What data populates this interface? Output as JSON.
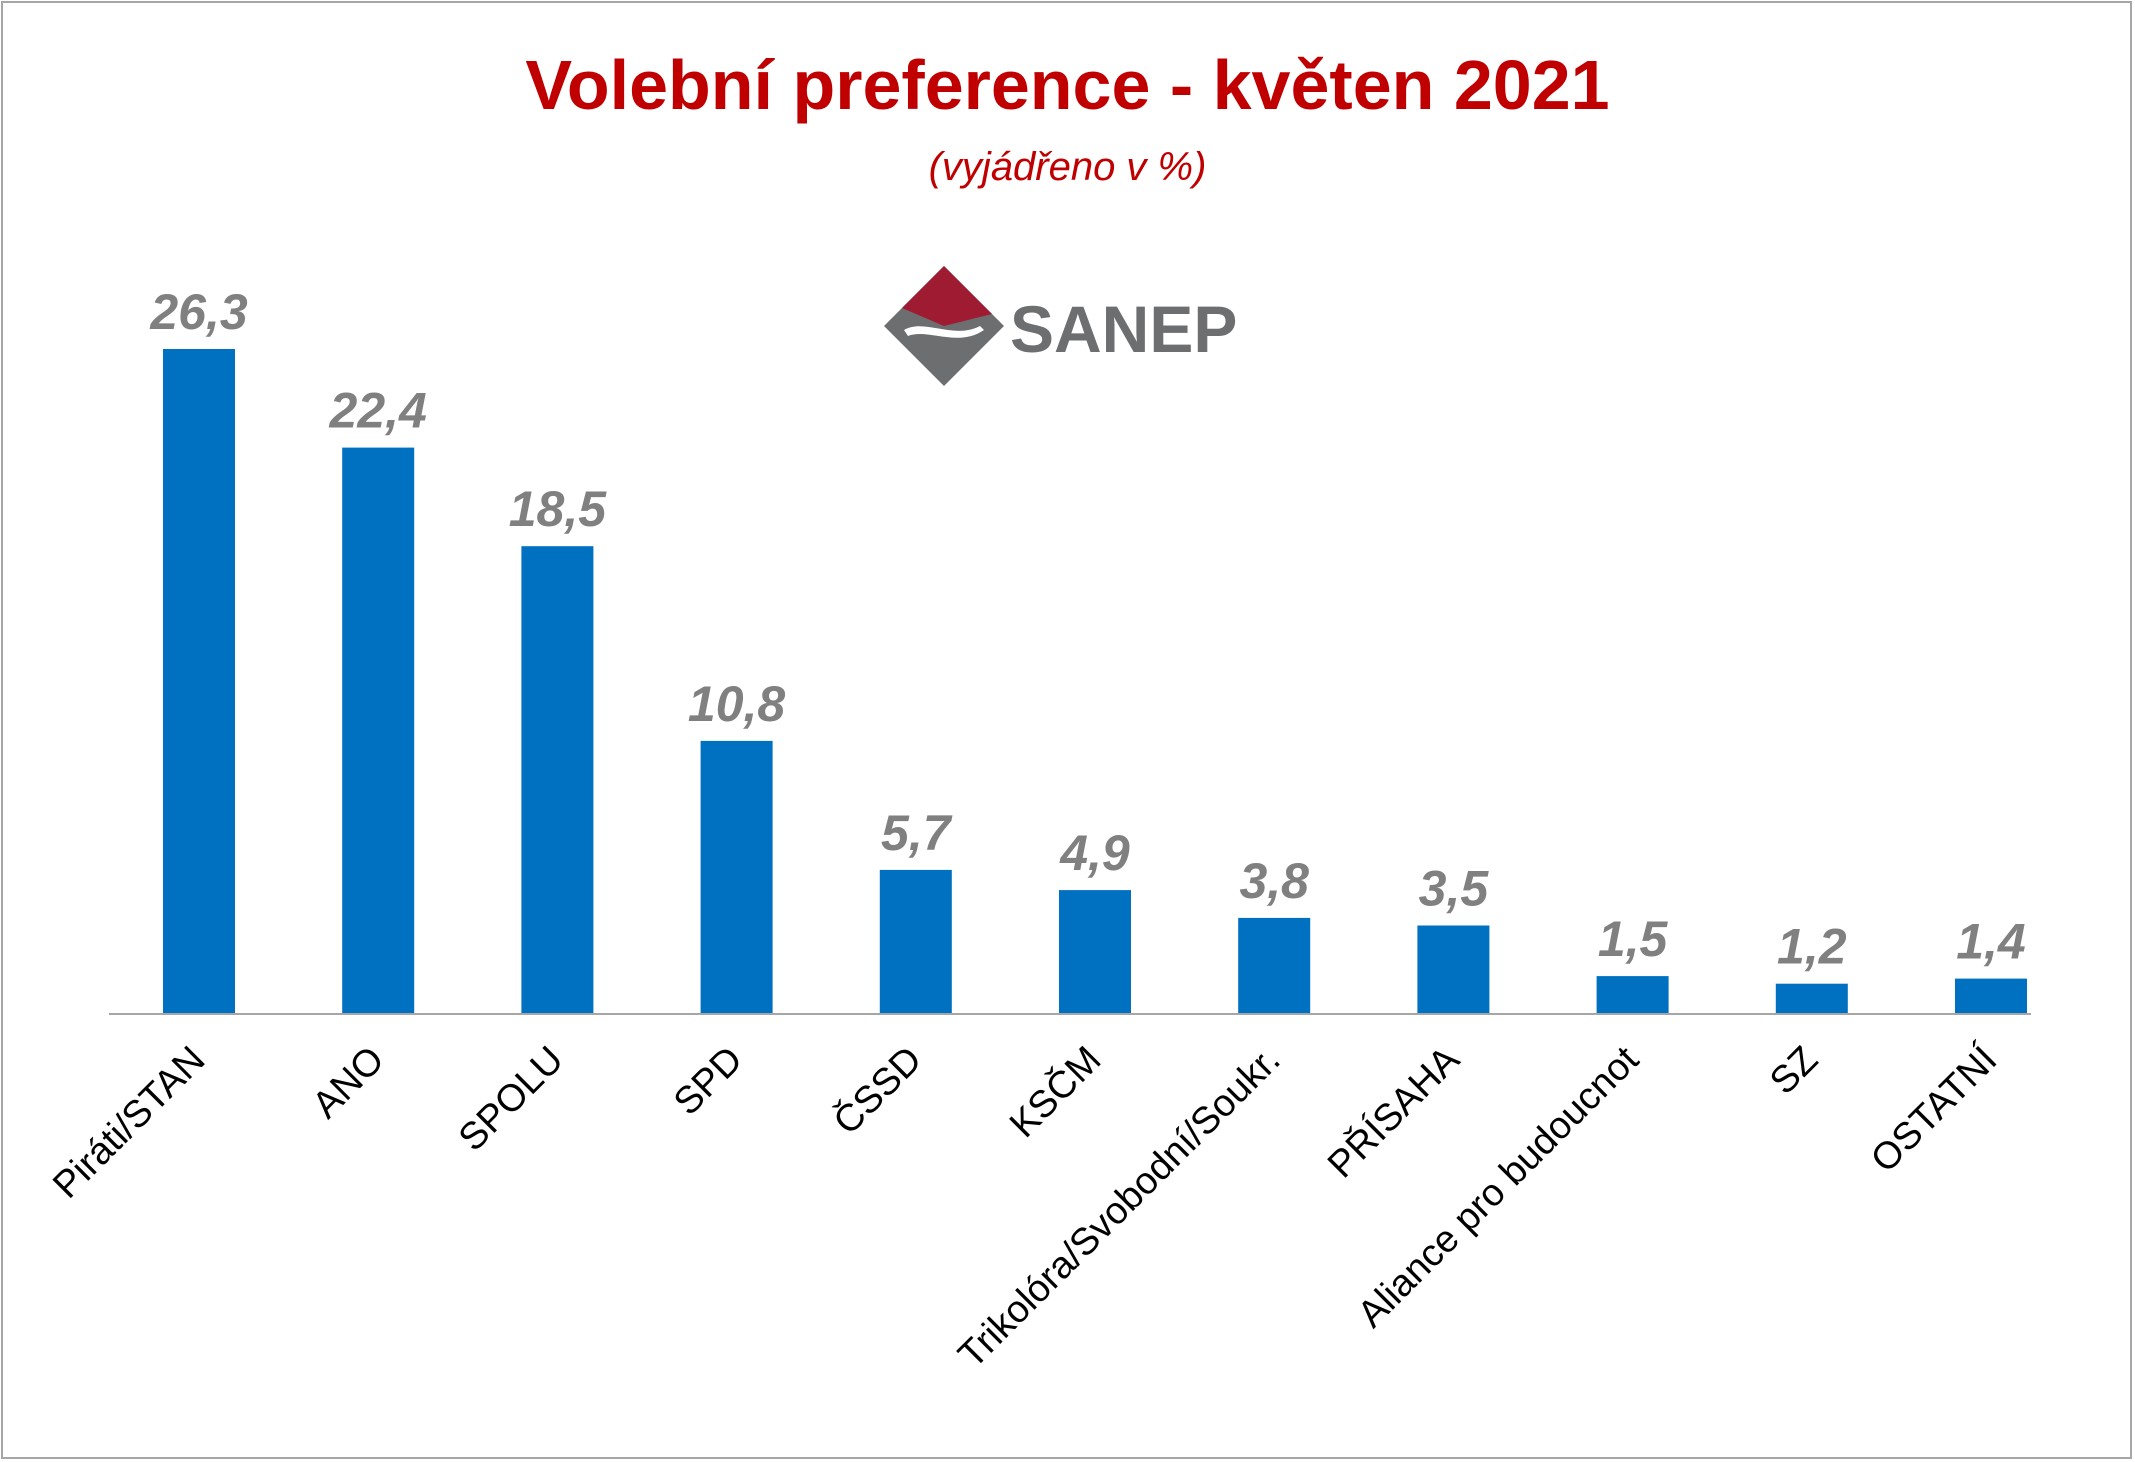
{
  "chart_data": {
    "type": "bar",
    "title": "Volební preference - květen 2021",
    "subtitle": "(vyjádřeno v %)",
    "categories": [
      "Piráti/STAN",
      "ANO",
      "SPOLU",
      "SPD",
      "ČSSD",
      "KSČM",
      "Trikolóra/Svobodní/Soukr.",
      "PŘÍSAHA",
      "Aliance pro budoucnot",
      "SZ",
      "OSTATNÍ"
    ],
    "values": [
      26.3,
      22.4,
      18.5,
      10.8,
      5.7,
      4.9,
      3.8,
      3.5,
      1.5,
      1.2,
      1.4
    ],
    "value_labels": [
      "26,3",
      "22,4",
      "18,5",
      "10,8",
      "5,7",
      "4,9",
      "3,8",
      "3,5",
      "1,5",
      "1,2",
      "1,4"
    ],
    "xlabel": "",
    "ylabel": "",
    "grid": false,
    "legend": "none",
    "colors": {
      "bar": "#0070c0",
      "title": "#c00000",
      "value_label": "#808080"
    }
  },
  "logo": {
    "text": "SANEP"
  }
}
